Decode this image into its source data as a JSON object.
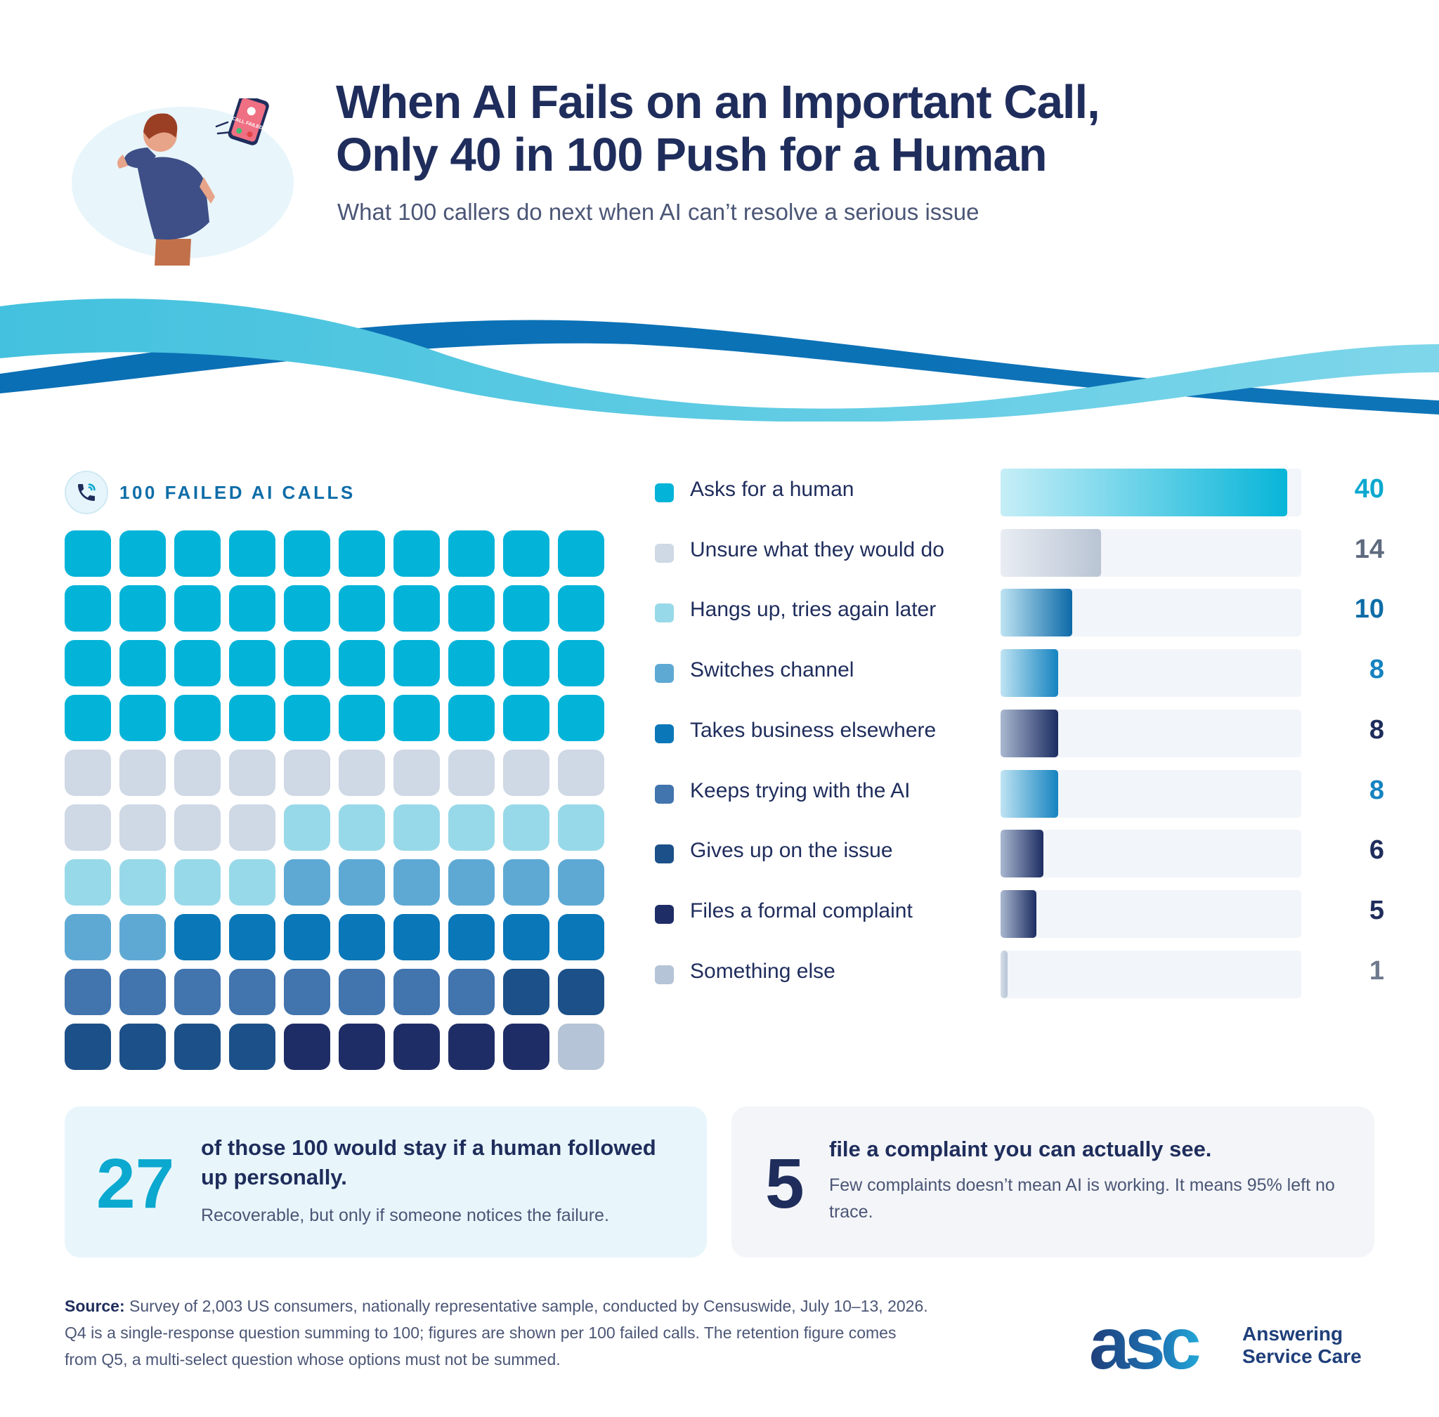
{
  "header": {
    "title_line1": "When AI Fails on an Important Call,",
    "title_line2": "Only 40 in 100 Push for a Human",
    "subtitle": "What 100 callers do next when AI can’t resolve a serious issue",
    "phone_screen_text": "CALL FAILED"
  },
  "waffle": {
    "label": "100 FAILED AI CALLS",
    "icon": "phone-icon"
  },
  "chart_data": {
    "type": "bar",
    "orientation": "horizontal",
    "categories": [
      "Asks for a human",
      "Unsure what they would do",
      "Hangs up, tries again later",
      "Switches channel",
      "Takes business elsewhere",
      "Keeps trying with the AI",
      "Gives up on the issue",
      "Files a formal complaint",
      "Something else"
    ],
    "values": [
      40,
      14,
      10,
      8,
      8,
      8,
      6,
      5,
      1
    ],
    "value_labels": [
      "40",
      "14",
      "10",
      "8",
      "8",
      "8",
      "6",
      "5",
      "1"
    ],
    "xlim": [
      0,
      42
    ],
    "colors": [
      "#04b4d8",
      "#cfd8e5",
      "#98d9e9",
      "#5ea9d4",
      "#0a77b8",
      "#4274ae",
      "#1c5088",
      "#1f2d66",
      "#b5c4d6"
    ],
    "bar_gradients": [
      [
        "#c6eef7",
        "#07b5d8"
      ],
      [
        "#e9edf3",
        "#b9c4d4"
      ],
      [
        "#bfe4f3",
        "#0d6aa8"
      ],
      [
        "#bfe4f3",
        "#1583c0"
      ],
      [
        "#aab8d0",
        "#1c2d62"
      ],
      [
        "#bfe4f3",
        "#1583c0"
      ],
      [
        "#aab8d0",
        "#1c2d62"
      ],
      [
        "#aab8d0",
        "#1c2d62"
      ],
      [
        "#d6dee8",
        "#b5c4d6"
      ]
    ],
    "value_colors": [
      "#0ba8cf",
      "#5e6a7e",
      "#0e6da8",
      "#1583c0",
      "#1f2d5c",
      "#1583c0",
      "#1f2d5c",
      "#1f2d5c",
      "#6e7a8e"
    ],
    "waffle_total": 100,
    "waffle_columns": 10
  },
  "callouts": [
    {
      "number": "27",
      "number_color": "#0ba8cf",
      "title": "of those 100 would stay if a human followed up personally.",
      "body": "Recoverable, but only if someone notices the failure."
    },
    {
      "number": "5",
      "number_color": "#1f2d5c",
      "title": "file a complaint you can actually see.",
      "body": "Few complaints doesn’t mean AI is working. It means 95% left no trace."
    }
  ],
  "footer": {
    "source_label": "Source:",
    "source_text": "Survey of 2,003 US consumers, nationally representative sample, conducted by Censuswide, July 10–13, 2026. Q4 is a single-response question summing to 100; figures are shown per 100 failed calls. The retention figure comes from Q5, a multi-select question whose options must not be summed.",
    "logo_mark": "asc",
    "logo_line1": "Answering",
    "logo_line2": "Service Care"
  },
  "theme": {
    "navy": "#1f2d5c",
    "cyan": "#04b4d8",
    "track": "#f2f5f9"
  }
}
